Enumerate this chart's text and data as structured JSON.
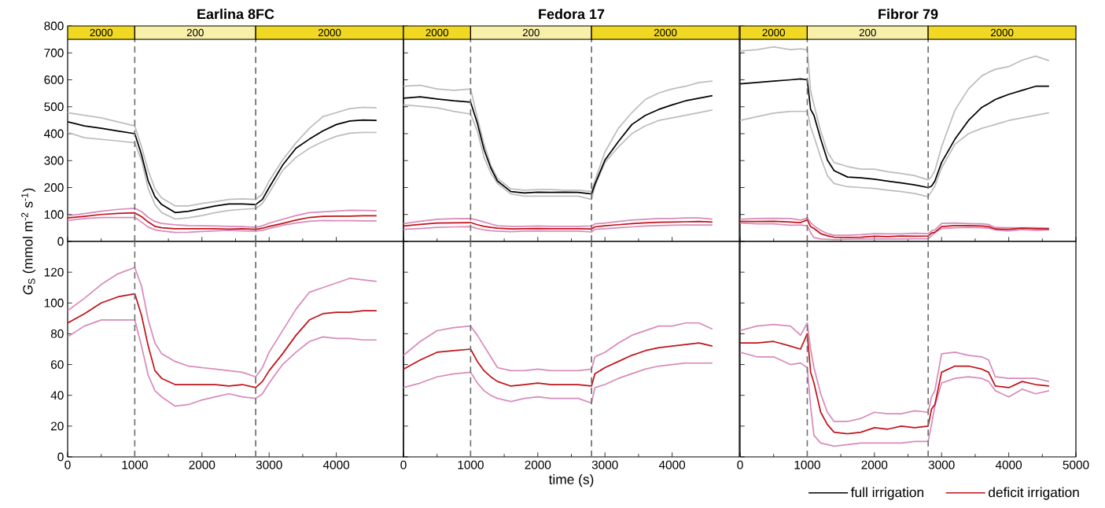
{
  "chart_data": [
    {
      "type": "line",
      "title": "Earlina 8FC",
      "ylabel": "*G*$_{S}$ (mmol m$^{-2}$ s$^{-1}$)",
      "x": [
        0,
        250,
        500,
        750,
        1000,
        1100,
        1200,
        1300,
        1400,
        1600,
        1800,
        2000,
        2200,
        2400,
        2600,
        2800,
        2900,
        3000,
        3200,
        3400,
        3600,
        3800,
        4000,
        4200,
        4400,
        4600
      ],
      "xlim": [
        0,
        5000
      ],
      "xticks": [
        0,
        1000,
        2000,
        3000,
        4000
      ],
      "ylim": [
        0,
        800
      ],
      "yticks": [
        0,
        100,
        200,
        300,
        400,
        500,
        600,
        700,
        800
      ],
      "tick_labels": "y",
      "legend": "bottom right",
      "bands": [
        {
          "axis": "x",
          "from": 0,
          "to": 1000,
          "label": "2000",
          "color": "#f0d823"
        },
        {
          "axis": "x",
          "from": 1000,
          "to": 2800,
          "label": "200",
          "color": "#f8f0a8"
        },
        {
          "axis": "x",
          "from": 2800,
          "to": 5000,
          "label": "2000",
          "color": "#f0d823"
        }
      ],
      "ref_lines": [
        {
          "axis": "x",
          "value": 1000,
          "color": "#707070",
          "line_style": "dashed"
        },
        {
          "axis": "x",
          "value": 2800,
          "color": "#707070",
          "line_style": "dashed"
        }
      ],
      "series": [
        {
          "color": "#bdbdbd",
          "values": [
            478,
            468,
            459,
            444,
            429,
            351,
            263,
            195,
            161,
            132,
            132,
            141,
            148,
            156,
            158,
            156,
            176,
            224,
            302,
            366,
            420,
            463,
            478,
            493,
            498,
            496
          ]
        },
        {
          "color": "#bdbdbd",
          "values": [
            405,
            385,
            379,
            373,
            366,
            302,
            195,
            137,
            107,
            83,
            88,
            96,
            107,
            115,
            119,
            122,
            141,
            180,
            263,
            312,
            346,
            371,
            390,
            402,
            405,
            405
          ]
        },
        {
          "name": "full irrigation",
          "color": "#000000",
          "values": [
            444,
            429,
            420,
            410,
            400,
            322,
            224,
            166,
            137,
            107,
            112,
            122,
            132,
            139,
            139,
            137,
            156,
            200,
            283,
            346,
            380,
            410,
            434,
            447,
            451,
            449
          ]
        },
        {
          "color": "#d88bbb",
          "values": [
            95,
            103,
            112,
            119,
            123,
            111,
            89,
            74,
            67,
            62,
            59,
            58,
            57,
            56,
            55,
            52,
            58,
            68,
            82,
            96,
            107,
            110,
            113,
            116,
            115,
            114
          ]
        },
        {
          "color": "#d88bbb",
          "values": [
            78,
            85,
            89,
            89,
            89,
            72,
            53,
            43,
            39,
            33,
            34,
            37,
            39,
            41,
            39,
            38,
            41,
            48,
            60,
            68,
            75,
            78,
            77,
            77,
            76,
            76
          ]
        },
        {
          "name": "deficit irrigation",
          "color": "#c0141b",
          "values": [
            87,
            93,
            100,
            104,
            106,
            92,
            72,
            56,
            51,
            47,
            47,
            47,
            47,
            46,
            47,
            45,
            49,
            56,
            67,
            79,
            89,
            93,
            94,
            94,
            95,
            95
          ]
        }
      ]
    },
    {
      "type": "line",
      "title": "Fedora 17",
      "x": [
        0,
        250,
        500,
        750,
        1000,
        1100,
        1200,
        1300,
        1400,
        1600,
        1800,
        2000,
        2200,
        2400,
        2600,
        2800,
        2850,
        3000,
        3200,
        3400,
        3600,
        3800,
        4000,
        4200,
        4400,
        4600
      ],
      "xlim": [
        0,
        5000
      ],
      "xticks": [
        0,
        1000,
        2000,
        3000,
        4000
      ],
      "ylim": [
        0,
        800
      ],
      "yticks": [
        0,
        100,
        200,
        300,
        400,
        500,
        600,
        700,
        800
      ],
      "tick_labels": false,
      "bands": [
        {
          "axis": "x",
          "from": 0,
          "to": 1000,
          "label": "2000",
          "color": "#f0d823"
        },
        {
          "axis": "x",
          "from": 1000,
          "to": 2800,
          "label": "200",
          "color": "#f8f0a8"
        },
        {
          "axis": "x",
          "from": 2800,
          "to": 5000,
          "label": "2000",
          "color": "#f0d823"
        }
      ],
      "ref_lines": [
        {
          "axis": "x",
          "value": 1000,
          "color": "#707070",
          "line_style": "dashed"
        },
        {
          "axis": "x",
          "value": 2800,
          "color": "#707070",
          "line_style": "dashed"
        }
      ],
      "series": [
        {
          "color": "#bdbdbd",
          "values": [
            576,
            580,
            566,
            561,
            566,
            459,
            361,
            283,
            234,
            195,
            190,
            192,
            192,
            190,
            190,
            186,
            225,
            332,
            420,
            478,
            527,
            551,
            566,
            576,
            590,
            595
          ]
        },
        {
          "color": "#bdbdbd",
          "values": [
            507,
            502,
            496,
            483,
            473,
            410,
            312,
            254,
            215,
            176,
            168,
            168,
            168,
            168,
            168,
            156,
            205,
            293,
            351,
            400,
            429,
            449,
            459,
            468,
            478,
            488
          ]
        },
        {
          "color": "#000000",
          "values": [
            532,
            537,
            529,
            522,
            517,
            439,
            341,
            273,
            224,
            185,
            180,
            183,
            182,
            183,
            182,
            176,
            212,
            302,
            371,
            434,
            468,
            490,
            507,
            522,
            532,
            541
          ]
        },
        {
          "color": "#d88bbb",
          "values": [
            66,
            75,
            82,
            84,
            85,
            79,
            72,
            65,
            58,
            56,
            56,
            57,
            56,
            56,
            56,
            57,
            65,
            68,
            74,
            79,
            82,
            85,
            85,
            87,
            87,
            83
          ]
        },
        {
          "color": "#d88bbb",
          "values": [
            45,
            48,
            52,
            54,
            55,
            48,
            43,
            40,
            38,
            36,
            38,
            39,
            38,
            38,
            38,
            35,
            45,
            47,
            51,
            54,
            57,
            59,
            60,
            61,
            61,
            61
          ]
        },
        {
          "color": "#c0141b",
          "values": [
            57,
            63,
            68,
            69,
            70,
            62,
            56,
            52,
            49,
            46,
            47,
            48,
            47,
            47,
            47,
            46,
            54,
            58,
            62,
            66,
            69,
            71,
            72,
            73,
            74,
            72
          ]
        }
      ]
    },
    {
      "type": "line",
      "title": "Fibror 79",
      "x": [
        0,
        250,
        500,
        750,
        900,
        1000,
        1050,
        1100,
        1200,
        1300,
        1400,
        1600,
        1800,
        2000,
        2200,
        2400,
        2600,
        2800,
        2850,
        2900,
        3000,
        3200,
        3400,
        3600,
        3700,
        3800,
        4000,
        4200,
        4400,
        4600
      ],
      "xlim": [
        0,
        5000
      ],
      "xticks": [
        0,
        1000,
        2000,
        3000,
        4000,
        5000
      ],
      "ylim": [
        0,
        800
      ],
      "yticks": [
        0,
        100,
        200,
        300,
        400,
        500,
        600,
        700,
        800
      ],
      "tick_labels": false,
      "bands": [
        {
          "axis": "x",
          "from": 0,
          "to": 1000,
          "label": "2000",
          "color": "#f0d823"
        },
        {
          "axis": "x",
          "from": 1000,
          "to": 2800,
          "label": "200",
          "color": "#f8f0a8"
        },
        {
          "axis": "x",
          "from": 2800,
          "to": 5000,
          "label": "2000",
          "color": "#f0d823"
        }
      ],
      "ref_lines": [
        {
          "axis": "x",
          "value": 1000,
          "color": "#707070",
          "line_style": "dashed"
        },
        {
          "axis": "x",
          "value": 2800,
          "color": "#707070",
          "line_style": "dashed"
        }
      ],
      "series": [
        {
          "color": "#bdbdbd",
          "values": [
            707,
            712,
            722,
            712,
            715,
            712,
            560,
            507,
            410,
            332,
            293,
            278,
            268,
            268,
            259,
            252,
            244,
            229,
            240,
            263,
            351,
            488,
            566,
            615,
            628,
            639,
            649,
            673,
            688,
            671
          ]
        },
        {
          "color": "#bdbdbd",
          "values": [
            449,
            463,
            476,
            483,
            483,
            483,
            425,
            390,
            312,
            244,
            215,
            203,
            200,
            197,
            190,
            185,
            178,
            166,
            185,
            205,
            273,
            361,
            400,
            420,
            427,
            434,
            449,
            459,
            468,
            478
          ]
        },
        {
          "color": "#000000",
          "values": [
            585,
            590,
            595,
            600,
            603,
            600,
            490,
            468,
            380,
            302,
            263,
            239,
            236,
            231,
            224,
            217,
            210,
            200,
            205,
            224,
            293,
            380,
            449,
            498,
            512,
            527,
            546,
            561,
            576,
            576
          ]
        },
        {
          "color": "#d88bbb",
          "values": [
            82,
            85,
            86,
            85,
            79,
            87,
            70,
            58,
            41,
            29,
            23,
            23,
            25,
            29,
            28,
            28,
            30,
            29,
            39,
            43,
            67,
            68,
            66,
            65,
            63,
            52,
            51,
            51,
            51,
            49
          ]
        },
        {
          "color": "#d88bbb",
          "values": [
            68,
            65,
            65,
            60,
            61,
            58,
            33,
            14,
            9,
            8,
            7,
            8,
            9,
            9,
            9,
            9,
            10,
            10,
            21,
            33,
            48,
            51,
            52,
            51,
            49,
            43,
            39,
            44,
            41,
            43
          ]
        },
        {
          "color": "#c0141b",
          "values": [
            74,
            74,
            75,
            72,
            70,
            80,
            55,
            48,
            29,
            21,
            16,
            15,
            16,
            19,
            18,
            20,
            19,
            20,
            31,
            34,
            55,
            59,
            59,
            57,
            55,
            46,
            45,
            49,
            47,
            46
          ]
        }
      ]
    },
    {
      "type": "line",
      "x": [
        0,
        250,
        500,
        750,
        1000,
        1100,
        1200,
        1300,
        1400,
        1600,
        1800,
        2000,
        2200,
        2400,
        2600,
        2800,
        2900,
        3000,
        3200,
        3400,
        3600,
        3800,
        4000,
        4200,
        4400,
        4600
      ],
      "xlim": [
        0,
        5000
      ],
      "xticks": [
        0,
        1000,
        2000,
        3000,
        4000
      ],
      "ylim": [
        0,
        140
      ],
      "yticks": [
        0,
        20,
        40,
        60,
        80,
        100,
        120
      ],
      "ref_lines": [
        {
          "axis": "x",
          "value": 1000,
          "color": "#707070",
          "line_style": "dashed"
        },
        {
          "axis": "x",
          "value": 2800,
          "color": "#707070",
          "line_style": "dashed"
        }
      ],
      "series": [
        {
          "color": "#d88bbb",
          "values": [
            95,
            103,
            112,
            119,
            123,
            111,
            89,
            74,
            67,
            62,
            59,
            58,
            57,
            56,
            55,
            52,
            58,
            68,
            82,
            96,
            107,
            110,
            113,
            116,
            115,
            114
          ]
        },
        {
          "color": "#d88bbb",
          "values": [
            78,
            85,
            89,
            89,
            89,
            72,
            53,
            43,
            39,
            33,
            34,
            37,
            39,
            41,
            39,
            38,
            41,
            48,
            60,
            68,
            75,
            78,
            77,
            77,
            76,
            76
          ]
        },
        {
          "color": "#c0141b",
          "values": [
            87,
            93,
            100,
            104,
            106,
            92,
            72,
            56,
            51,
            47,
            47,
            47,
            47,
            46,
            47,
            45,
            49,
            56,
            67,
            79,
            89,
            93,
            94,
            94,
            95,
            95
          ]
        }
      ]
    },
    {
      "type": "line",
      "xlabel": "time (s)",
      "x": [
        0,
        250,
        500,
        750,
        1000,
        1100,
        1200,
        1300,
        1400,
        1600,
        1800,
        2000,
        2200,
        2400,
        2600,
        2800,
        2850,
        3000,
        3200,
        3400,
        3600,
        3800,
        4000,
        4200,
        4400,
        4600
      ],
      "xlim": [
        0,
        5000
      ],
      "xticks": [
        0,
        1000,
        2000,
        3000,
        4000
      ],
      "ylim": [
        0,
        140
      ],
      "yticks": [
        0,
        20,
        40,
        60,
        80,
        100,
        120
      ],
      "tick_labels": "x",
      "ref_lines": [
        {
          "axis": "x",
          "value": 1000,
          "color": "#707070",
          "line_style": "dashed"
        },
        {
          "axis": "x",
          "value": 2800,
          "color": "#707070",
          "line_style": "dashed"
        }
      ],
      "series": [
        {
          "color": "#d88bbb",
          "values": [
            66,
            75,
            82,
            84,
            85,
            79,
            72,
            65,
            58,
            56,
            56,
            57,
            56,
            56,
            56,
            57,
            65,
            68,
            74,
            79,
            82,
            85,
            85,
            87,
            87,
            83
          ]
        },
        {
          "color": "#d88bbb",
          "values": [
            45,
            48,
            52,
            54,
            55,
            48,
            43,
            40,
            38,
            36,
            38,
            39,
            38,
            38,
            38,
            35,
            45,
            47,
            51,
            54,
            57,
            59,
            60,
            61,
            61,
            61
          ]
        },
        {
          "color": "#c0141b",
          "values": [
            57,
            63,
            68,
            69,
            70,
            62,
            56,
            52,
            49,
            46,
            47,
            48,
            47,
            47,
            47,
            46,
            54,
            58,
            62,
            66,
            69,
            71,
            72,
            73,
            74,
            72
          ]
        }
      ]
    },
    {
      "type": "line",
      "x": [
        0,
        250,
        500,
        750,
        900,
        1000,
        1050,
        1100,
        1200,
        1300,
        1400,
        1600,
        1800,
        2000,
        2200,
        2400,
        2600,
        2800,
        2850,
        2900,
        3000,
        3200,
        3400,
        3600,
        3700,
        3800,
        4000,
        4200,
        4400,
        4600
      ],
      "xlim": [
        0,
        5000
      ],
      "xticks": [
        0,
        1000,
        2000,
        3000,
        4000,
        5000
      ],
      "ylim": [
        0,
        140
      ],
      "yticks": [
        0,
        20,
        40,
        60,
        80,
        100,
        120
      ],
      "tick_labels": "x",
      "ref_lines": [
        {
          "axis": "x",
          "value": 1000,
          "color": "#707070",
          "line_style": "dashed"
        },
        {
          "axis": "x",
          "value": 2800,
          "color": "#707070",
          "line_style": "dashed"
        }
      ],
      "series": [
        {
          "color": "#d88bbb",
          "values": [
            82,
            85,
            86,
            85,
            79,
            87,
            70,
            58,
            41,
            29,
            23,
            23,
            25,
            29,
            28,
            28,
            30,
            29,
            39,
            43,
            67,
            68,
            66,
            65,
            63,
            52,
            51,
            51,
            51,
            49
          ]
        },
        {
          "color": "#d88bbb",
          "values": [
            68,
            65,
            65,
            60,
            61,
            58,
            33,
            14,
            9,
            8,
            7,
            8,
            9,
            9,
            9,
            9,
            10,
            10,
            21,
            33,
            48,
            51,
            52,
            51,
            49,
            43,
            39,
            44,
            41,
            43
          ]
        },
        {
          "color": "#c0141b",
          "values": [
            74,
            74,
            75,
            72,
            70,
            80,
            55,
            48,
            29,
            21,
            16,
            15,
            16,
            19,
            18,
            20,
            19,
            20,
            31,
            34,
            55,
            59,
            59,
            57,
            55,
            46,
            45,
            49,
            47,
            46
          ]
        }
      ]
    }
  ]
}
